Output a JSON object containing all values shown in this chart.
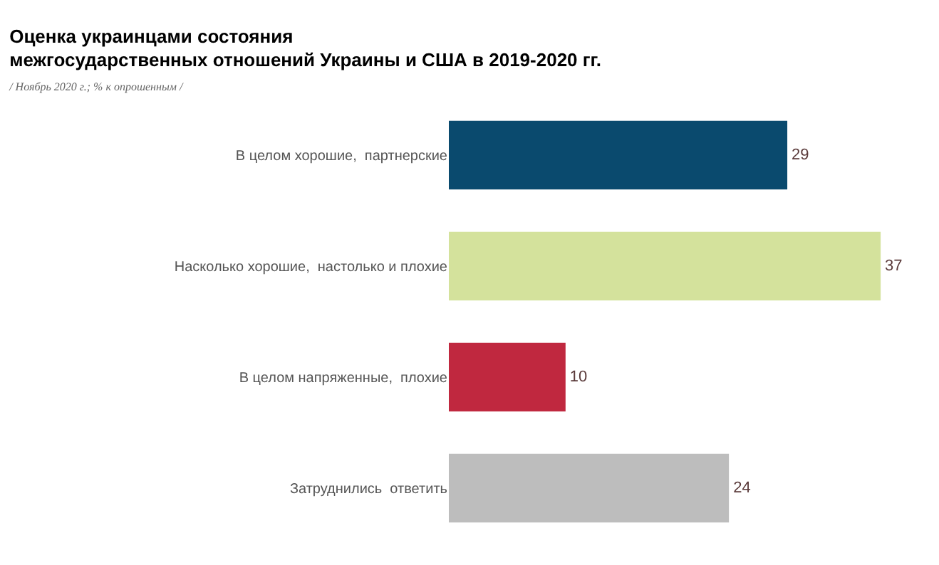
{
  "chart_data": {
    "type": "bar",
    "orientation": "horizontal",
    "title": "Оценка украинцами состояния\nмежгосударственных отношений Украины и США в 2019-2020 гг.",
    "subtitle": "/ Ноябрь 2020 г.; % к опрошенным /",
    "categories": [
      "В целом хорошие,  партнерские",
      "Насколько хорошие,  настолько и плохие",
      "В целом напряженные,  плохие",
      "Затруднились  ответить"
    ],
    "values": [
      29,
      37,
      10,
      24
    ],
    "colors": [
      "#0a4a6e",
      "#d4e29c",
      "#c0283f",
      "#bdbdbd"
    ],
    "data_labels": true,
    "grid": false,
    "legend": false
  }
}
